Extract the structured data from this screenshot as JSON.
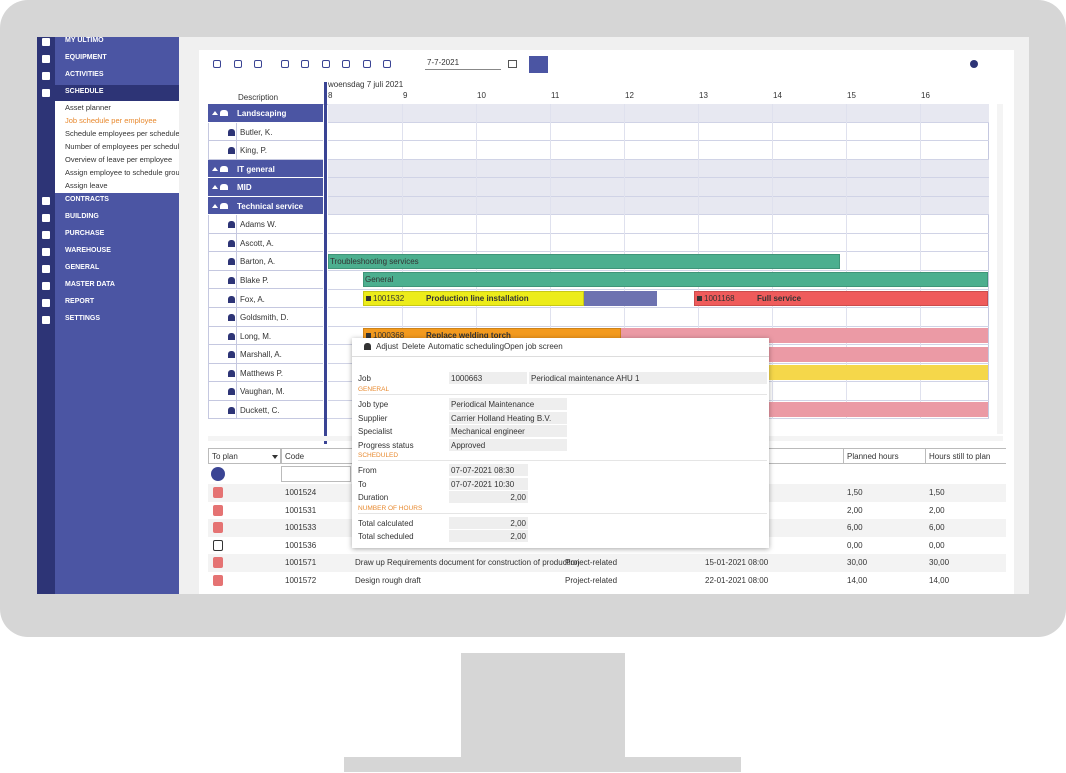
{
  "sidebar": {
    "menu": [
      "MY ULTIMO",
      "EQUIPMENT",
      "ACTIVITIES",
      "SCHEDULE",
      "CONTRACTS",
      "BUILDING",
      "PURCHASE",
      "WAREHOUSE",
      "GENERAL",
      "MASTER DATA",
      "REPORT",
      "SETTINGS"
    ],
    "submenu": [
      "Asset planner",
      "Job schedule per employee",
      "Schedule employees per schedule g",
      "Number of employees per schedule",
      "Overview of leave per employee",
      "Assign employee to schedule group",
      "Assign leave"
    ]
  },
  "toolbar": {
    "date": "7-7-2021"
  },
  "gantt": {
    "day": "woensdag 7 juli 2021",
    "description_header": "Description",
    "hours": [
      8,
      9,
      10,
      11,
      12,
      13,
      14,
      15,
      16
    ],
    "rows": [
      {
        "label": "Landscaping",
        "group": true
      },
      {
        "label": "Butler, K."
      },
      {
        "label": "King, P."
      },
      {
        "label": "IT general",
        "group": true
      },
      {
        "label": "MID",
        "group": true
      },
      {
        "label": "Technical service",
        "group": true
      },
      {
        "label": "Adams W."
      },
      {
        "label": "Ascott, A."
      },
      {
        "label": "Barton, A.",
        "bars": [
          {
            "label": "Troubleshooting services"
          }
        ]
      },
      {
        "label": "Blake P.",
        "bars": [
          {
            "label": "General"
          }
        ]
      },
      {
        "label": "Fox, A.",
        "bars": [
          {
            "code": "1001532",
            "label": "Production line installation"
          },
          {
            "code": "1001168",
            "label": "Full service"
          }
        ]
      },
      {
        "label": "Goldsmith, D."
      },
      {
        "label": "Long, M.",
        "bars": [
          {
            "code": "1000368",
            "label": "Replace welding torch"
          }
        ]
      },
      {
        "label": "Marshall, A."
      },
      {
        "label": "Matthews P."
      },
      {
        "label": "Vaughan, M."
      },
      {
        "label": "Duckett, C."
      }
    ]
  },
  "table": {
    "filter": "To plan",
    "columns": {
      "code": "Code",
      "planned": "Planned hours",
      "still": "Hours still to plan"
    },
    "rows": [
      {
        "code": "1001524",
        "planned": "1,50",
        "still": "1,50"
      },
      {
        "code": "1001531",
        "planned": "2,00",
        "still": "2,00"
      },
      {
        "code": "1001533",
        "planned": "6,00",
        "still": "6,00"
      },
      {
        "code": "1001536",
        "planned": "0,00",
        "still": "0,00"
      },
      {
        "code": "1001571",
        "description": "Draw up Requirements document for construction of production",
        "type": "Project-related",
        "date": "15-01-2021 08:00",
        "planned": "30,00",
        "still": "30,00"
      },
      {
        "code": "1001572",
        "description": "Design rough draft",
        "type": "Project-related",
        "date": "22-01-2021 08:00",
        "planned": "14,00",
        "still": "14,00"
      }
    ]
  },
  "popup": {
    "actions": [
      "Adjust",
      "Delete",
      "Automatic scheduling",
      "Open job screen"
    ],
    "job": {
      "label": "Job",
      "code": "1000663",
      "description": "Periodical maintenance AHU 1"
    },
    "sections": [
      {
        "title": "GENERAL",
        "fields": [
          [
            "Job type",
            "Periodical Maintenance"
          ],
          [
            "Supplier",
            "Carrier Holland Heating B.V."
          ],
          [
            "Specialist",
            "Mechanical engineer"
          ],
          [
            "Progress status",
            "Approved"
          ]
        ]
      },
      {
        "title": "SCHEDULED",
        "fields": [
          [
            "From",
            "07-07-2021 08:30"
          ],
          [
            "To",
            "07-07-2021 10:30"
          ],
          [
            "Duration",
            "2,00"
          ]
        ]
      },
      {
        "title": "NUMBER OF HOURS",
        "fields": [
          [
            "Total calculated",
            "2,00"
          ],
          [
            "Total scheduled",
            "2,00"
          ]
        ]
      }
    ]
  }
}
